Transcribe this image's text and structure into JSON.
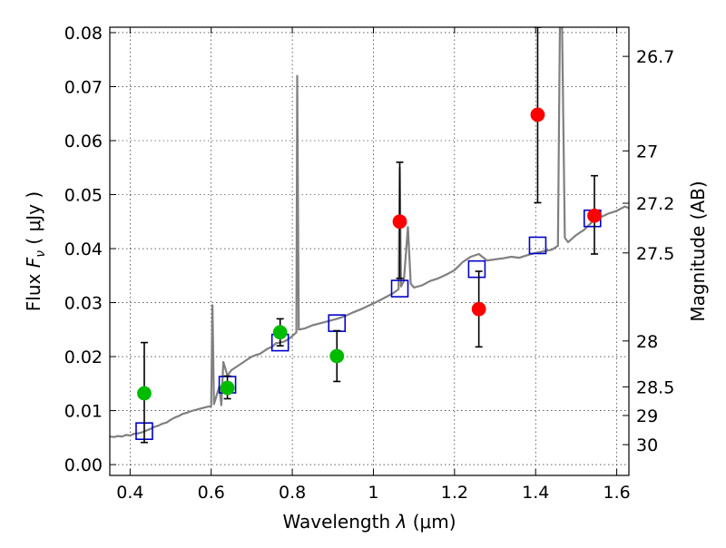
{
  "chart_data": {
    "type": "scatter",
    "xlabel_prefix": "Wavelength",
    "xlabel_symbol": "λ",
    "xlabel_unit": "(μm)",
    "ylabel_prefix": "Flux",
    "ylabel_symbol": "F",
    "ylabel_sub": "ν",
    "ylabel_unit": "( μJy )",
    "y2label": "Magnitude (AB)",
    "xlim": [
      0.35,
      1.63
    ],
    "ylim": [
      -0.002,
      0.081
    ],
    "grid": true,
    "x_ticks": [
      {
        "value": 0.4,
        "label": "0.4"
      },
      {
        "value": 0.6,
        "label": "0.6"
      },
      {
        "value": 0.8,
        "label": "0.8"
      },
      {
        "value": 1.0,
        "label": "1"
      },
      {
        "value": 1.2,
        "label": "1.2"
      },
      {
        "value": 1.4,
        "label": "1.4"
      },
      {
        "value": 1.6,
        "label": "1.6"
      }
    ],
    "y_ticks": [
      {
        "value": 0.0,
        "label": "0.00"
      },
      {
        "value": 0.01,
        "label": "0.01"
      },
      {
        "value": 0.02,
        "label": "0.02"
      },
      {
        "value": 0.03,
        "label": "0.03"
      },
      {
        "value": 0.04,
        "label": "0.04"
      },
      {
        "value": 0.05,
        "label": "0.05"
      },
      {
        "value": 0.06,
        "label": "0.06"
      },
      {
        "value": 0.07,
        "label": "0.07"
      },
      {
        "value": 0.08,
        "label": "0.08"
      }
    ],
    "y2_ticks": [
      {
        "label": "26.7",
        "flux": 0.0756
      },
      {
        "label": "27",
        "flux": 0.0581
      },
      {
        "label": "27.2",
        "flux": 0.0484
      },
      {
        "label": "27.5",
        "flux": 0.0392
      },
      {
        "label": "28",
        "flux": 0.0229
      },
      {
        "label": "28.5",
        "flux": 0.0144
      },
      {
        "label": "29",
        "flux": 0.0091
      },
      {
        "label": "30",
        "flux": 0.0037
      }
    ],
    "model_spectrum": {
      "color": "#808080",
      "points": [
        [
          0.35,
          0.0052
        ],
        [
          0.36,
          0.0051
        ],
        [
          0.37,
          0.0053
        ],
        [
          0.38,
          0.0052
        ],
        [
          0.39,
          0.0055
        ],
        [
          0.4,
          0.0054
        ],
        [
          0.41,
          0.0057
        ],
        [
          0.42,
          0.0058
        ],
        [
          0.43,
          0.006
        ],
        [
          0.44,
          0.0063
        ],
        [
          0.45,
          0.0066
        ],
        [
          0.46,
          0.007
        ],
        [
          0.47,
          0.0072
        ],
        [
          0.48,
          0.0076
        ],
        [
          0.49,
          0.0078
        ],
        [
          0.5,
          0.0083
        ],
        [
          0.51,
          0.0087
        ],
        [
          0.52,
          0.009
        ],
        [
          0.53,
          0.0094
        ],
        [
          0.54,
          0.0096
        ],
        [
          0.55,
          0.0099
        ],
        [
          0.56,
          0.0101
        ],
        [
          0.57,
          0.0103
        ],
        [
          0.58,
          0.0105
        ],
        [
          0.59,
          0.0107
        ],
        [
          0.6,
          0.0108
        ],
        [
          0.603,
          0.0295
        ],
        [
          0.607,
          0.0112
        ],
        [
          0.62,
          0.0145
        ],
        [
          0.625,
          0.011
        ],
        [
          0.63,
          0.019
        ],
        [
          0.64,
          0.0165
        ],
        [
          0.65,
          0.0175
        ],
        [
          0.66,
          0.018
        ],
        [
          0.67,
          0.0185
        ],
        [
          0.68,
          0.019
        ],
        [
          0.69,
          0.0195
        ],
        [
          0.7,
          0.02
        ],
        [
          0.71,
          0.0203
        ],
        [
          0.72,
          0.0205
        ],
        [
          0.73,
          0.021
        ],
        [
          0.74,
          0.0215
        ],
        [
          0.75,
          0.0218
        ],
        [
          0.76,
          0.0225
        ],
        [
          0.77,
          0.0226
        ],
        [
          0.78,
          0.0228
        ],
        [
          0.79,
          0.0232
        ],
        [
          0.8,
          0.0238
        ],
        [
          0.81,
          0.0245
        ],
        [
          0.812,
          0.072
        ],
        [
          0.816,
          0.025
        ],
        [
          0.83,
          0.0252
        ],
        [
          0.85,
          0.0258
        ],
        [
          0.87,
          0.0262
        ],
        [
          0.89,
          0.0266
        ],
        [
          0.91,
          0.027
        ],
        [
          0.93,
          0.0275
        ],
        [
          0.95,
          0.0282
        ],
        [
          0.97,
          0.0288
        ],
        [
          0.99,
          0.0295
        ],
        [
          1.01,
          0.0302
        ],
        [
          1.03,
          0.031
        ],
        [
          1.05,
          0.0318
        ],
        [
          1.062,
          0.0325
        ],
        [
          1.065,
          0.055
        ],
        [
          1.068,
          0.033
        ],
        [
          1.075,
          0.034
        ],
        [
          1.085,
          0.044
        ],
        [
          1.092,
          0.0335
        ],
        [
          1.1,
          0.0328
        ],
        [
          1.12,
          0.0332
        ],
        [
          1.14,
          0.034
        ],
        [
          1.16,
          0.0345
        ],
        [
          1.18,
          0.0352
        ],
        [
          1.2,
          0.036
        ],
        [
          1.22,
          0.0375
        ],
        [
          1.24,
          0.0385
        ],
        [
          1.26,
          0.039
        ],
        [
          1.28,
          0.0378
        ],
        [
          1.3,
          0.038
        ],
        [
          1.32,
          0.0382
        ],
        [
          1.34,
          0.0385
        ],
        [
          1.36,
          0.0383
        ],
        [
          1.38,
          0.0388
        ],
        [
          1.4,
          0.0392
        ],
        [
          1.42,
          0.0395
        ],
        [
          1.44,
          0.0398
        ],
        [
          1.455,
          0.0405
        ],
        [
          1.46,
          0.082
        ],
        [
          1.465,
          0.082
        ],
        [
          1.472,
          0.042
        ],
        [
          1.48,
          0.0412
        ],
        [
          1.5,
          0.0425
        ],
        [
          1.52,
          0.0435
        ],
        [
          1.54,
          0.045
        ],
        [
          1.56,
          0.0458
        ],
        [
          1.58,
          0.0465
        ],
        [
          1.6,
          0.047
        ],
        [
          1.62,
          0.0478
        ],
        [
          1.63,
          0.0475
        ]
      ]
    },
    "series": [
      {
        "marker": "square",
        "color": "#0000cc",
        "points": [
          {
            "x": 0.435,
            "y": 0.0062
          },
          {
            "x": 0.64,
            "y": 0.0148
          },
          {
            "x": 0.77,
            "y": 0.0226
          },
          {
            "x": 0.91,
            "y": 0.0262
          },
          {
            "x": 1.065,
            "y": 0.0326
          },
          {
            "x": 1.255,
            "y": 0.0362
          },
          {
            "x": 1.405,
            "y": 0.0406
          },
          {
            "x": 1.54,
            "y": 0.0456
          }
        ]
      },
      {
        "marker": "circle",
        "color": "#00bb00",
        "points": [
          {
            "x": 0.435,
            "y": 0.0132,
            "err_lo": 0.0041,
            "err_hi": 0.0226
          },
          {
            "x": 0.64,
            "y": 0.0142,
            "err_lo": 0.0122,
            "err_hi": 0.0164
          },
          {
            "x": 0.77,
            "y": 0.0245,
            "err_lo": 0.022,
            "err_hi": 0.027
          },
          {
            "x": 0.91,
            "y": 0.0201,
            "err_lo": 0.0154,
            "err_hi": 0.0248
          }
        ]
      },
      {
        "marker": "circle",
        "color": "#ff0000",
        "points": [
          {
            "x": 1.065,
            "y": 0.045,
            "err_lo": 0.0345,
            "err_hi": 0.056
          },
          {
            "x": 1.26,
            "y": 0.0288,
            "err_lo": 0.0218,
            "err_hi": 0.0358
          },
          {
            "x": 1.405,
            "y": 0.0648,
            "err_lo": 0.0485,
            "err_hi": 0.081
          },
          {
            "x": 1.545,
            "y": 0.0461,
            "err_lo": 0.039,
            "err_hi": 0.0535
          }
        ]
      }
    ]
  }
}
